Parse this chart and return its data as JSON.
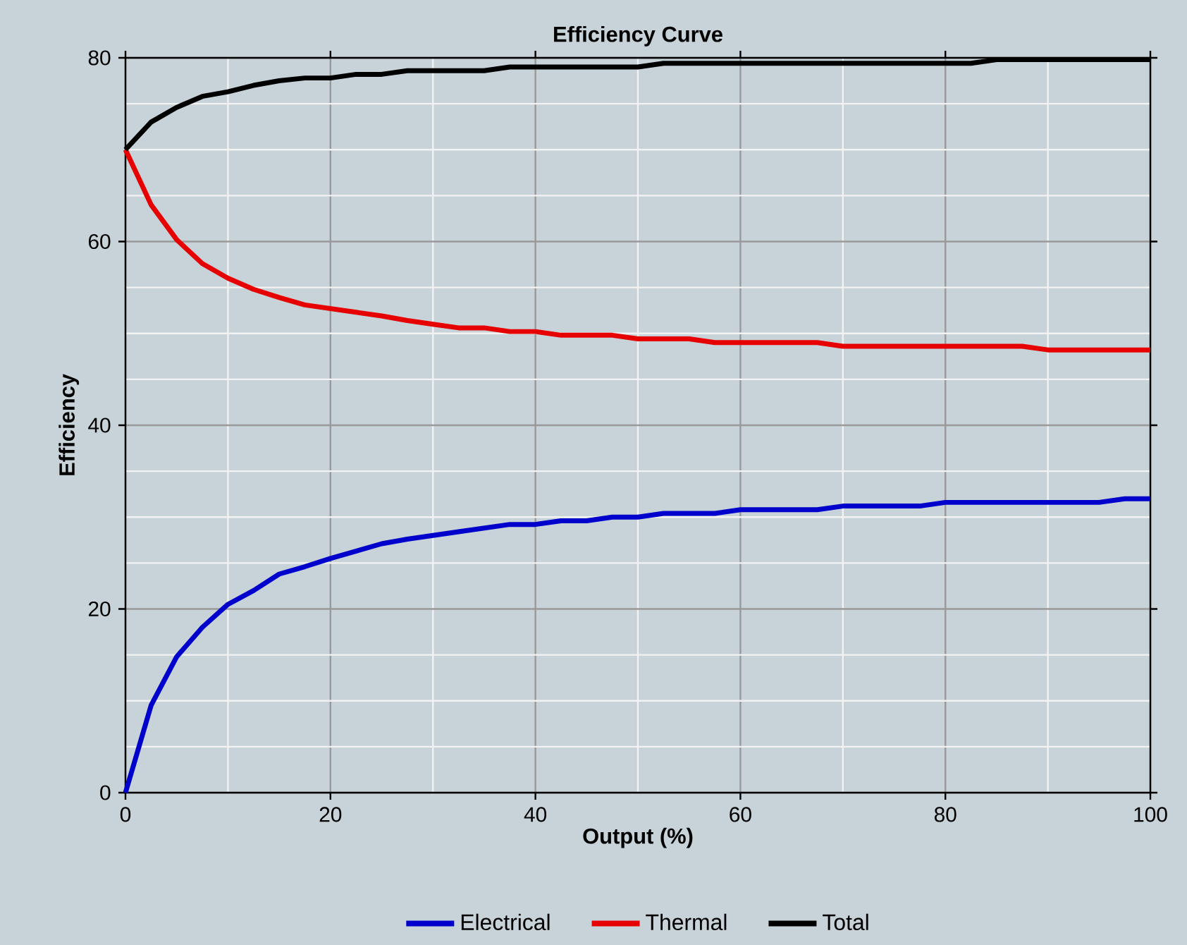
{
  "chart_data": {
    "type": "line",
    "title": "Efficiency Curve",
    "xlabel": "Output (%)",
    "ylabel": "Efficiency",
    "x": [
      0,
      2.5,
      5,
      7.5,
      10,
      12.5,
      15,
      17.5,
      20,
      22.5,
      25,
      27.5,
      30,
      32.5,
      35,
      37.5,
      40,
      42.5,
      45,
      47.5,
      50,
      52.5,
      55,
      57.5,
      60,
      62.5,
      65,
      67.5,
      70,
      72.5,
      75,
      77.5,
      80,
      82.5,
      85,
      87.5,
      90,
      92.5,
      95,
      97.5,
      100
    ],
    "series": [
      {
        "name": "Electrical",
        "color": "#0000cc",
        "values": [
          0,
          9.5,
          14.8,
          18,
          20.5,
          22,
          23.8,
          24.6,
          25.5,
          26.3,
          27.1,
          27.6,
          28,
          28.4,
          28.8,
          29.2,
          29.2,
          29.6,
          29.6,
          30,
          30,
          30.4,
          30.4,
          30.4,
          30.8,
          30.8,
          30.8,
          30.8,
          31.2,
          31.2,
          31.2,
          31.2,
          31.6,
          31.6,
          31.6,
          31.6,
          31.6,
          31.6,
          31.6,
          32,
          32
        ]
      },
      {
        "name": "Thermal",
        "color": "#e60000",
        "values": [
          70,
          64,
          60.2,
          57.6,
          56,
          54.8,
          53.9,
          53.1,
          52.7,
          52.3,
          51.9,
          51.4,
          51,
          50.6,
          50.6,
          50.2,
          50.2,
          49.8,
          49.8,
          49.8,
          49.4,
          49.4,
          49.4,
          49,
          49,
          49,
          49,
          49,
          48.6,
          48.6,
          48.6,
          48.6,
          48.6,
          48.6,
          48.6,
          48.6,
          48.2,
          48.2,
          48.2,
          48.2,
          48.2
        ]
      },
      {
        "name": "Total",
        "color": "#000000",
        "values": [
          70,
          73,
          74.6,
          75.8,
          76.3,
          77,
          77.5,
          77.8,
          77.8,
          78.2,
          78.2,
          78.6,
          78.6,
          78.6,
          78.6,
          79,
          79,
          79,
          79,
          79,
          79,
          79.4,
          79.4,
          79.4,
          79.4,
          79.4,
          79.4,
          79.4,
          79.4,
          79.4,
          79.4,
          79.4,
          79.4,
          79.4,
          79.8,
          79.8,
          79.8,
          79.8,
          79.8,
          79.8,
          79.8
        ]
      }
    ],
    "xlim": [
      0,
      100
    ],
    "ylim": [
      0,
      80
    ],
    "xticks": [
      0,
      20,
      40,
      60,
      80,
      100
    ],
    "yticks": [
      0,
      20,
      40,
      60,
      80
    ],
    "grid": true,
    "legend": "bottom"
  }
}
